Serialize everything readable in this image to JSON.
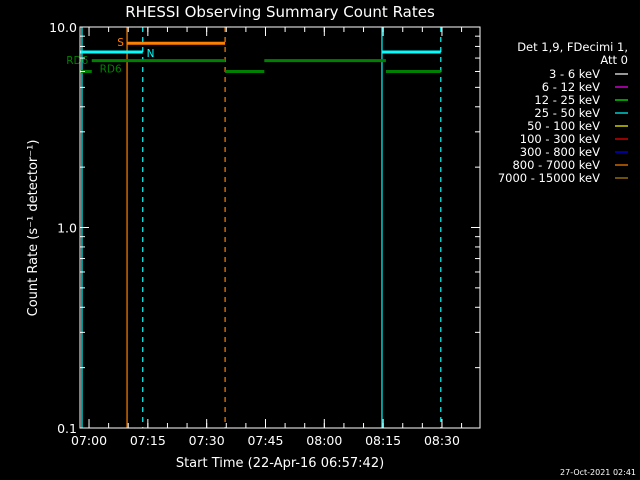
{
  "chart_data": {
    "type": "line",
    "title": "RHESSI Observing Summary Count Rates",
    "xlabel": "Start Time (22-Apr-16 06:57:42)",
    "ylabel": "Count Rate (s⁻¹ detector⁻¹)",
    "x_unit": "minutes after 06:57:42",
    "xlim": [
      0,
      102
    ],
    "ylim": [
      0.1,
      10.0
    ],
    "y_scale": "log",
    "grid": false,
    "x_ticks": [
      {
        "label": "07:00",
        "x": 2.3
      },
      {
        "label": "07:15",
        "x": 17.3
      },
      {
        "label": "07:30",
        "x": 32.3
      },
      {
        "label": "07:45",
        "x": 47.3
      },
      {
        "label": "08:00",
        "x": 62.3
      },
      {
        "label": "08:15",
        "x": 77.3
      },
      {
        "label": "08:30",
        "x": 92.3
      }
    ],
    "y_ticks": [
      {
        "label": "10.0",
        "y": 10.0
      },
      {
        "label": "1.0",
        "y": 1.0
      },
      {
        "label": "0.1",
        "y": 0.1
      }
    ],
    "legend": {
      "placement": "right",
      "header": [
        "Det 1,9, FDecimi 1,",
        "Att 0"
      ],
      "entries": [
        {
          "label": "3 - 6 keV",
          "color": "#ffffff"
        },
        {
          "label": "6 - 12 keV",
          "color": "#ff00ff"
        },
        {
          "label": "12 - 25 keV",
          "color": "#00ff00"
        },
        {
          "label": "25 - 50 keV",
          "color": "#00ffff"
        },
        {
          "label": "50 - 100 keV",
          "color": "#ffff00"
        },
        {
          "label": "100 - 300 keV",
          "color": "#ff0000"
        },
        {
          "label": "300 - 800 keV",
          "color": "#0000ff"
        },
        {
          "label": "800 - 7000 keV",
          "color": "#ff8000"
        },
        {
          "label": "7000 - 15000 keV",
          "color": "#b8860b"
        }
      ]
    },
    "series": [
      {
        "color": "#00ffff",
        "segments": [
          [
            [
              0,
              7.5
            ],
            [
              16,
              7.5
            ]
          ],
          [
            [
              77,
              7.5
            ],
            [
              92,
              7.5
            ]
          ]
        ]
      },
      {
        "color": "#ff8000",
        "segments": [
          [
            [
              12,
              8.3
            ],
            [
              37,
              8.3
            ]
          ]
        ]
      },
      {
        "color": "#008000",
        "segments": [
          [
            [
              0,
              6.0
            ],
            [
              3,
              6.0
            ]
          ],
          [
            [
              3,
              6.8
            ],
            [
              37,
              6.8
            ]
          ],
          [
            [
              37,
              6.0
            ],
            [
              47,
              6.0
            ]
          ],
          [
            [
              47,
              6.8
            ],
            [
              78,
              6.8
            ]
          ],
          [
            [
              78,
              6.0
            ],
            [
              92,
              6.0
            ]
          ]
        ]
      }
    ],
    "vlines": [
      {
        "x": 0.5,
        "color": "#00ffff",
        "style": "solid"
      },
      {
        "x": 12,
        "color": "#ff8000",
        "style": "solid"
      },
      {
        "x": 16,
        "color": "#00ffff",
        "style": "dashed"
      },
      {
        "x": 37,
        "color": "#ff8000",
        "style": "dashed"
      },
      {
        "x": 77,
        "color": "#00ffff",
        "style": "solid"
      },
      {
        "x": 92,
        "color": "#00ffff",
        "style": "dashed"
      }
    ],
    "annotations": [
      {
        "text": "S",
        "x": 9.5,
        "y": 8.4,
        "color": "#ff8000"
      },
      {
        "text": "N",
        "x": 17,
        "y": 7.4,
        "color": "#00ffff"
      },
      {
        "text": "RD6",
        "x": -3.5,
        "y": 6.85,
        "color": "#008000"
      },
      {
        "text": "RD6",
        "x": 5,
        "y": 6.2,
        "color": "#008000"
      }
    ]
  },
  "footer": {
    "timestamp": "27-Oct-2021 02:41"
  }
}
